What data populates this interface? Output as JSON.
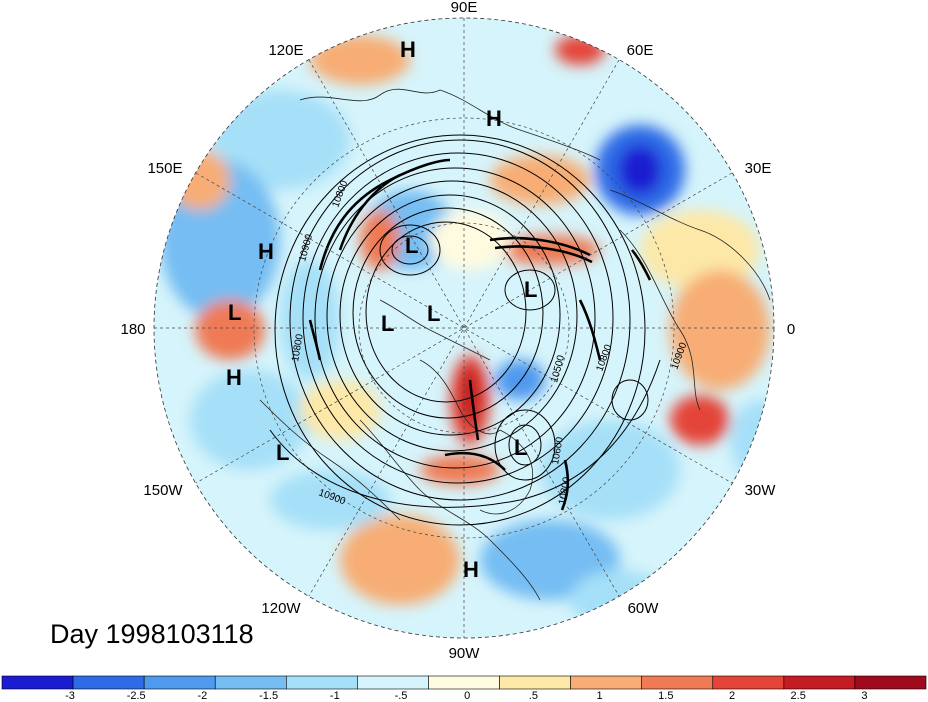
{
  "title": "Day 1998103118",
  "longitude_labels": {
    "top": "90E",
    "lon_120e": "120E",
    "lon_60e": "60E",
    "lon_150e": "150E",
    "lon_30e": "30E",
    "left": "180",
    "right": "0",
    "lon_150w": "150W",
    "lon_30w": "30W",
    "lon_120w": "120W",
    "lon_60w": "60W",
    "bottom": "90W"
  },
  "pressure_centers": [
    {
      "type": "H"
    },
    {
      "type": "H"
    },
    {
      "type": "H"
    },
    {
      "type": "L"
    },
    {
      "type": "L"
    },
    {
      "type": "L"
    },
    {
      "type": "L"
    },
    {
      "type": "L"
    },
    {
      "type": "H"
    },
    {
      "type": "L"
    },
    {
      "type": "L"
    },
    {
      "type": "H"
    }
  ],
  "contour_labels": [
    "10800",
    "10900",
    "10800",
    "10500",
    "10600",
    "10800",
    "10900",
    "10900",
    "10800"
  ],
  "colorbar": {
    "colors": [
      "#1b1bd1",
      "#2e6ce6",
      "#4f99ee",
      "#75bdf3",
      "#a6e0f8",
      "#d6f4fb",
      "#fffbe0",
      "#fde8a8",
      "#f7ad74",
      "#ef7a55",
      "#e54538",
      "#c51b22",
      "#9f0a1c"
    ],
    "labels": [
      "-3",
      "-2.5",
      "-2",
      "-1.5",
      "-1",
      "-.5",
      "0",
      ".5",
      "1",
      "1.5",
      "2",
      "2.5",
      "3"
    ]
  }
}
